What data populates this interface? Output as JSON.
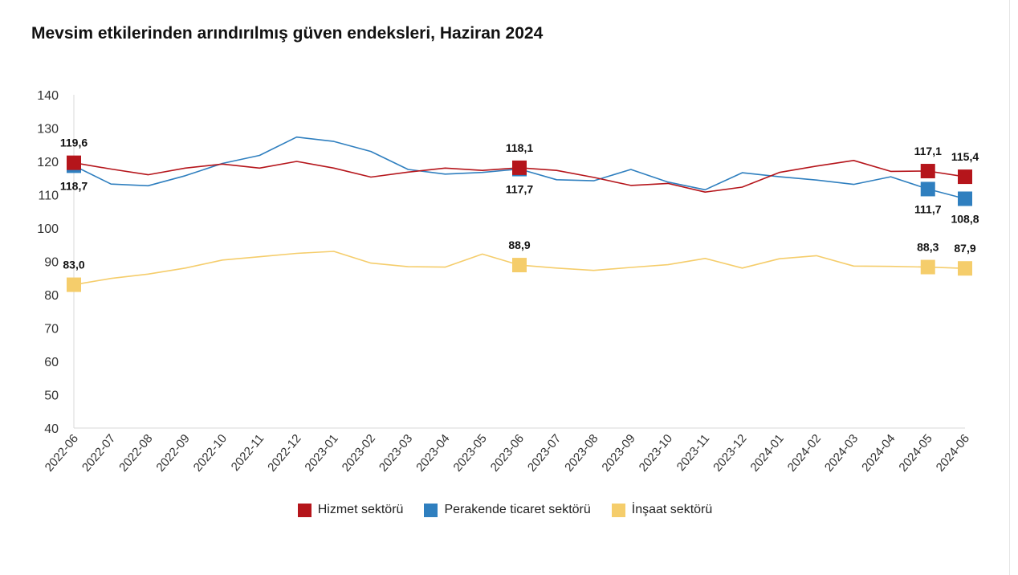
{
  "colors": {
    "hizmet": "#b5151b",
    "perakende": "#2f7fbf",
    "insaat": "#f5cd6b"
  },
  "chart_data": {
    "type": "line",
    "title": "Mevsim etkilerinden arındırılmış güven endeksleri, Haziran 2024",
    "xlabel": "",
    "ylabel": "",
    "ylim": [
      40,
      140
    ],
    "yticks": [
      "40",
      "50",
      "60",
      "70",
      "80",
      "90",
      "100",
      "110",
      "120",
      "130",
      "140"
    ],
    "grid": false,
    "legend": "bottom",
    "categories": [
      "2022-06",
      "2022-07",
      "2022-08",
      "2022-09",
      "2022-10",
      "2022-11",
      "2022-12",
      "2023-01",
      "2023-02",
      "2023-03",
      "2023-04",
      "2023-05",
      "2023-06",
      "2023-07",
      "2023-08",
      "2023-09",
      "2023-10",
      "2023-11",
      "2023-12",
      "2024-01",
      "2024-02",
      "2024-03",
      "2024-04",
      "2024-05",
      "2024-06"
    ],
    "series": [
      {
        "name": "Hizmet sektörü",
        "color": "#b5151b",
        "values": [
          119.6,
          117.7,
          116.0,
          118.0,
          119.2,
          118.0,
          120.0,
          118.0,
          115.3,
          116.8,
          118.0,
          117.3,
          118.1,
          117.3,
          115.2,
          112.8,
          113.4,
          110.8,
          112.3,
          116.7,
          118.6,
          120.3,
          117.0,
          117.1,
          115.4
        ],
        "labels": [
          {
            "index": 0,
            "text": "119,6",
            "pos": "above"
          },
          {
            "index": 12,
            "text": "118,1",
            "pos": "above"
          },
          {
            "index": 23,
            "text": "117,1",
            "pos": "above"
          },
          {
            "index": 24,
            "text": "115,4",
            "pos": "above"
          }
        ]
      },
      {
        "name": "Perakende ticaret sektörü",
        "color": "#2f7fbf",
        "values": [
          118.7,
          113.2,
          112.7,
          115.7,
          119.4,
          121.8,
          127.3,
          126.0,
          123.0,
          117.6,
          116.2,
          116.7,
          117.7,
          114.5,
          114.2,
          117.6,
          113.8,
          111.5,
          116.6,
          115.4,
          114.4,
          113.1,
          115.4,
          111.7,
          108.8
        ],
        "labels": [
          {
            "index": 0,
            "text": "118,7",
            "pos": "below"
          },
          {
            "index": 12,
            "text": "117,7",
            "pos": "below"
          },
          {
            "index": 23,
            "text": "111,7",
            "pos": "below"
          },
          {
            "index": 24,
            "text": "108,8",
            "pos": "below"
          }
        ]
      },
      {
        "name": "İnşaat sektörü",
        "color": "#f5cd6b",
        "values": [
          83.0,
          84.9,
          86.2,
          88.0,
          90.4,
          91.4,
          92.4,
          93.0,
          89.5,
          88.4,
          88.3,
          92.2,
          88.9,
          88.0,
          87.3,
          88.2,
          89.0,
          90.9,
          88.0,
          90.8,
          91.7,
          88.6,
          88.5,
          88.3,
          87.9
        ],
        "labels": [
          {
            "index": 0,
            "text": "83,0",
            "pos": "above"
          },
          {
            "index": 12,
            "text": "88,9",
            "pos": "above"
          },
          {
            "index": 23,
            "text": "88,3",
            "pos": "above"
          },
          {
            "index": 24,
            "text": "87,9",
            "pos": "above"
          }
        ]
      }
    ]
  }
}
